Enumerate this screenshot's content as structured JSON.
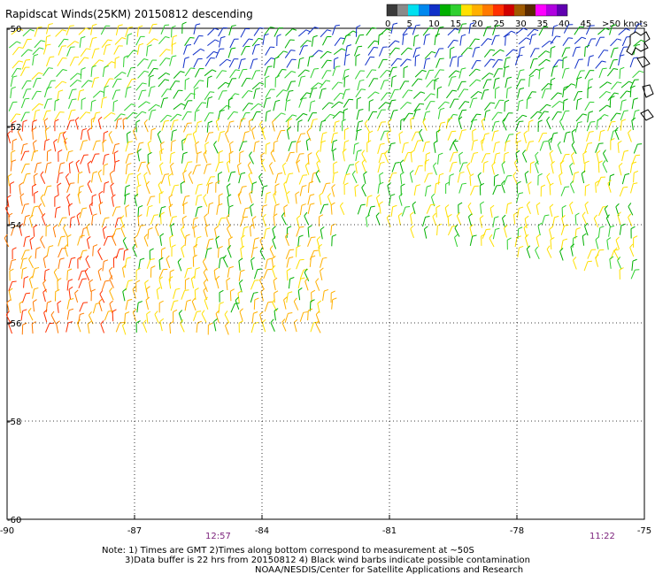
{
  "title": "Rapidscat Winds(25KM) 20150812 descending",
  "legend": {
    "labels": [
      "0",
      "5",
      "10",
      "15",
      "20",
      "25",
      "30",
      "35",
      "40",
      "45",
      ">50 knots"
    ],
    "colors": [
      "#3a3a3a",
      "#8a8a8a",
      "#00e0f0",
      "#0088ee",
      "#1030c8",
      "#00b000",
      "#30d030",
      "#ffe000",
      "#ffb000",
      "#ff7a00",
      "#ff3000",
      "#d00000",
      "#a05a00",
      "#5a2a00",
      "#ff00ff",
      "#b000e0",
      "#6000b0"
    ]
  },
  "axes": {
    "lon_ticks": [
      "-90",
      "-87",
      "-84",
      "-81",
      "-78",
      "-75"
    ],
    "lat_ticks": [
      "-50",
      "-52",
      "-54",
      "-56",
      "-58",
      "-60"
    ]
  },
  "times": [
    "12:57",
    "11:22"
  ],
  "notes": [
    "Note: 1) Times are GMT 2)Times along bottom correspond to measurement at ~50S",
    "3)Data buffer is 22 hrs from 20150812 4) Black wind barbs indicate possible contamination",
    "NOAA/NESDIS/Center for Satellite Applications and Research"
  ]
}
